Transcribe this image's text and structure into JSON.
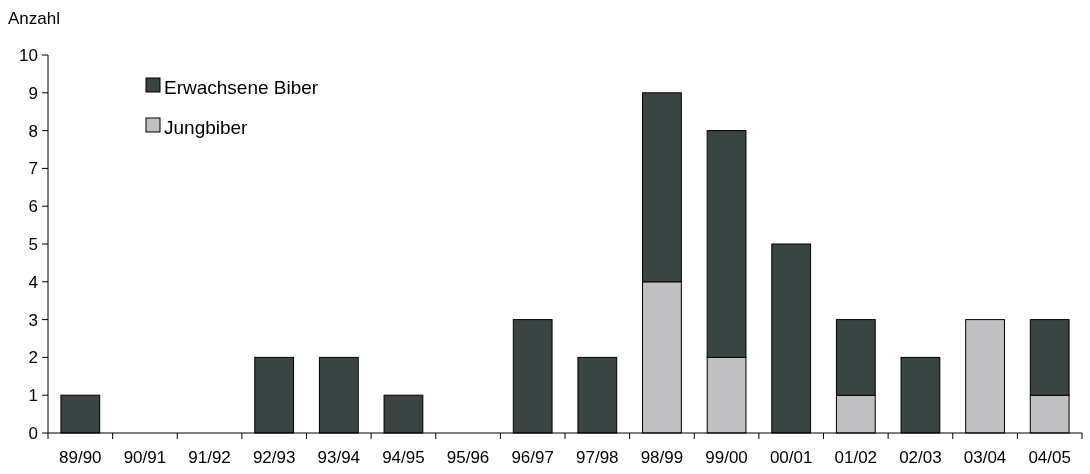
{
  "chart_data": {
    "type": "bar",
    "ylabel": "Anzahl",
    "categories": [
      "89/90",
      "90/91",
      "91/92",
      "92/93",
      "93/94",
      "94/95",
      "95/96",
      "96/97",
      "97/98",
      "98/99",
      "99/00",
      "00/01",
      "01/02",
      "02/03",
      "03/04",
      "04/05"
    ],
    "series": [
      {
        "name": "Jungbiber",
        "color": "#c0c0c3",
        "values": [
          0,
          0,
          0,
          0,
          0,
          0,
          0,
          0,
          0,
          4,
          2,
          0,
          1,
          0,
          3,
          1
        ]
      },
      {
        "name": "Erwachsene Biber",
        "color": "#3a4543",
        "values": [
          1,
          0,
          0,
          2,
          2,
          1,
          0,
          3,
          2,
          5,
          6,
          5,
          2,
          2,
          0,
          2
        ]
      }
    ],
    "stacked": true,
    "ylim": [
      0,
      10
    ],
    "yticks": [
      0,
      1,
      2,
      3,
      4,
      5,
      6,
      7,
      8,
      9,
      10
    ],
    "grid": false,
    "legend": "top left"
  }
}
